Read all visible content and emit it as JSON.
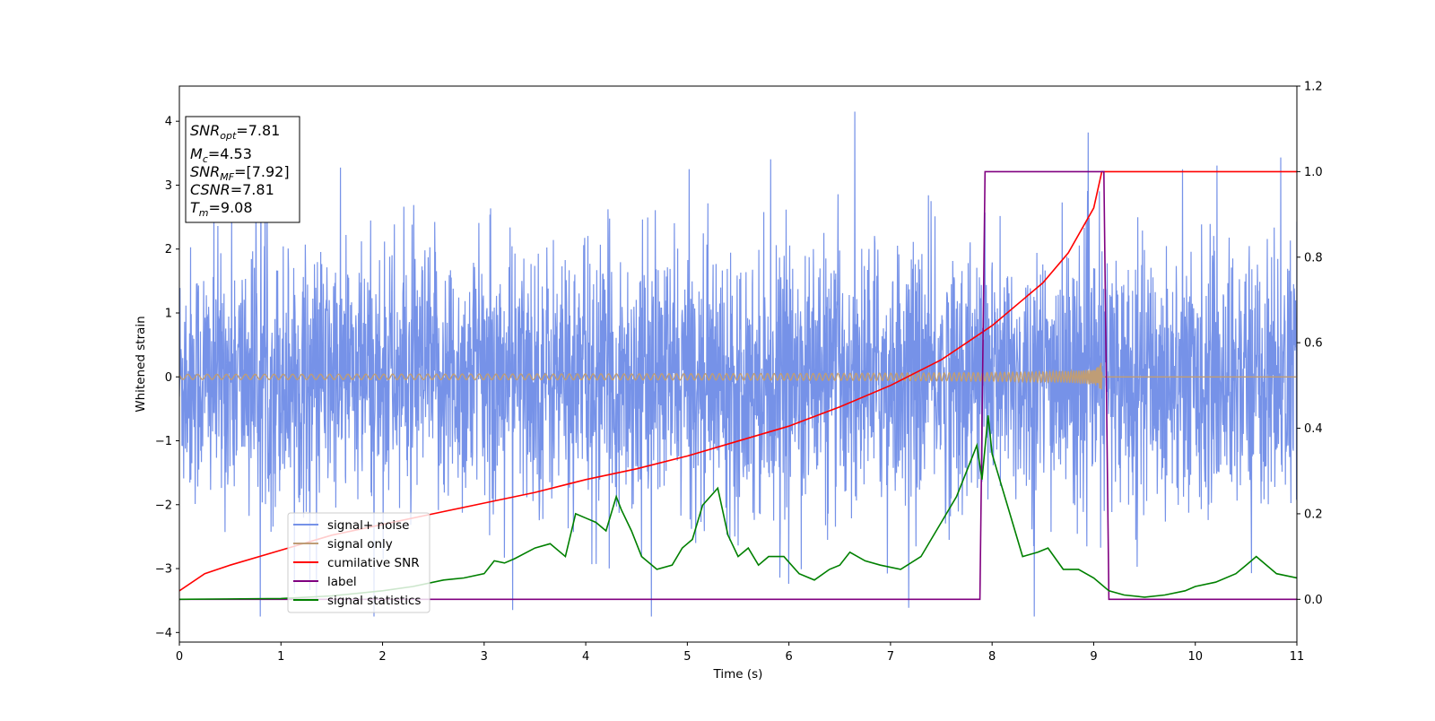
{
  "chart_data": {
    "type": "line",
    "xlabel": "Time (s)",
    "ylabel": "Whitened strain",
    "xlim": [
      0,
      11
    ],
    "ylim": [
      -4.15,
      4.55
    ],
    "y2lim": [
      -0.1,
      1.2
    ],
    "grid": false,
    "legend_placement": "lower-left",
    "x_ticks": [
      "0",
      "1",
      "2",
      "3",
      "4",
      "5",
      "6",
      "7",
      "8",
      "9",
      "10",
      "11"
    ],
    "y_ticks": [
      "−4",
      "−3",
      "−2",
      "−1",
      "0",
      "1",
      "2",
      "3",
      "4"
    ],
    "y2_ticks": [
      "0.0",
      "0.2",
      "0.4",
      "0.6",
      "0.8",
      "1.0",
      "1.2"
    ],
    "annotation": {
      "snr_opt": {
        "base": "SNR",
        "sub": "opt",
        "value": "=7.81"
      },
      "mc": {
        "base": "M",
        "sub": "c",
        "value": "=4.53"
      },
      "snr_mf": {
        "base": "SNR",
        "sub": "MF",
        "value": "=[7.92]"
      },
      "csnr": {
        "base": "CSNR",
        "value": "=7.81"
      },
      "tm": {
        "base": "T",
        "sub": "m",
        "value": "=9.08"
      }
    },
    "series": [
      {
        "name": "signal+ noise",
        "color": "#7692e8",
        "axis": "left",
        "description_values": {
          "typical_range": [
            -2.0,
            2.5
          ],
          "peak_max": 4.15,
          "peak_min": -3.75
        }
      },
      {
        "name": "signal only",
        "color": "#bf9d76",
        "axis": "left",
        "chirp": {
          "amplitude_start": 0.04,
          "amplitude_end": 0.65,
          "merger_time": 9.08
        }
      },
      {
        "name": "cumilative SNR",
        "color": "#ff0000",
        "axis": "right",
        "x": [
          0,
          0.25,
          0.5,
          1,
          1.5,
          2,
          2.5,
          3,
          3.5,
          4,
          4.5,
          5,
          5.5,
          6,
          6.5,
          7,
          7.5,
          8,
          8.5,
          8.75,
          9,
          9.08,
          9.1,
          11
        ],
        "y": [
          0.02,
          0.06,
          0.08,
          0.115,
          0.15,
          0.175,
          0.2,
          0.225,
          0.25,
          0.28,
          0.305,
          0.335,
          0.37,
          0.405,
          0.45,
          0.5,
          0.56,
          0.64,
          0.74,
          0.81,
          0.915,
          1.0,
          1.0,
          1.0
        ]
      },
      {
        "name": "label",
        "color": "#800080",
        "axis": "right",
        "x": [
          0,
          7.88,
          7.93,
          9.1,
          9.15,
          11
        ],
        "y": [
          0,
          0,
          1,
          1,
          0,
          0
        ]
      },
      {
        "name": "signal statistics",
        "color": "#008000",
        "axis": "right",
        "x": [
          0,
          1,
          1.5,
          2,
          2.3,
          2.6,
          2.8,
          3.0,
          3.1,
          3.2,
          3.3,
          3.5,
          3.65,
          3.8,
          3.9,
          4.0,
          4.1,
          4.2,
          4.3,
          4.35,
          4.45,
          4.55,
          4.7,
          4.85,
          4.95,
          5.05,
          5.15,
          5.3,
          5.4,
          5.5,
          5.6,
          5.7,
          5.8,
          5.95,
          6.1,
          6.25,
          6.4,
          6.5,
          6.6,
          6.75,
          6.9,
          7.1,
          7.3,
          7.5,
          7.65,
          7.75,
          7.85,
          7.9,
          7.96,
          8.0,
          8.05,
          8.15,
          8.3,
          8.45,
          8.55,
          8.7,
          8.85,
          9.0,
          9.05,
          9.15,
          9.3,
          9.5,
          9.7,
          9.9,
          10.0,
          10.2,
          10.4,
          10.5,
          10.6,
          10.8,
          11.0
        ],
        "y": [
          0.0,
          0.002,
          0.008,
          0.02,
          0.03,
          0.045,
          0.05,
          0.06,
          0.09,
          0.085,
          0.095,
          0.12,
          0.13,
          0.1,
          0.2,
          0.19,
          0.18,
          0.16,
          0.24,
          0.21,
          0.16,
          0.1,
          0.07,
          0.08,
          0.12,
          0.14,
          0.22,
          0.26,
          0.15,
          0.1,
          0.12,
          0.08,
          0.1,
          0.1,
          0.06,
          0.045,
          0.07,
          0.08,
          0.11,
          0.09,
          0.08,
          0.07,
          0.1,
          0.18,
          0.24,
          0.3,
          0.36,
          0.28,
          0.43,
          0.34,
          0.3,
          0.22,
          0.1,
          0.11,
          0.12,
          0.07,
          0.07,
          0.05,
          0.04,
          0.02,
          0.01,
          0.005,
          0.01,
          0.02,
          0.03,
          0.04,
          0.06,
          0.08,
          0.1,
          0.06,
          0.05
        ]
      }
    ]
  }
}
